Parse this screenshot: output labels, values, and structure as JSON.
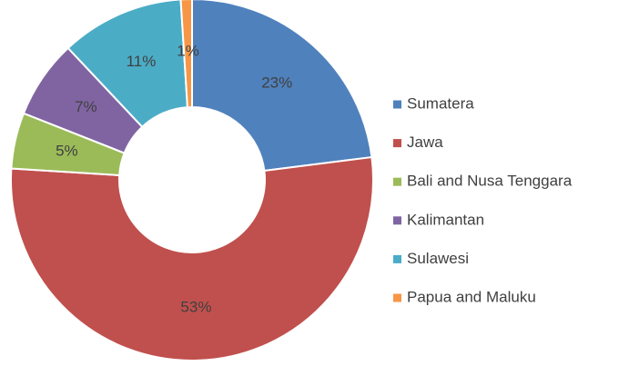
{
  "chart_data": {
    "type": "donut",
    "categories": [
      "Sumatera",
      "Jawa",
      "Bali and Nusa Tenggara",
      "Kalimantan",
      "Sulawesi",
      "Papua and Maluku"
    ],
    "values": [
      23,
      53,
      5,
      7,
      11,
      1
    ],
    "value_labels": [
      "23%",
      "53%",
      "5%",
      "7%",
      "11%",
      "1%"
    ],
    "colors": [
      "#4f81bd",
      "#c0504d",
      "#9bbb59",
      "#8064a2",
      "#4bacc6",
      "#f79646"
    ],
    "legend": "right"
  }
}
